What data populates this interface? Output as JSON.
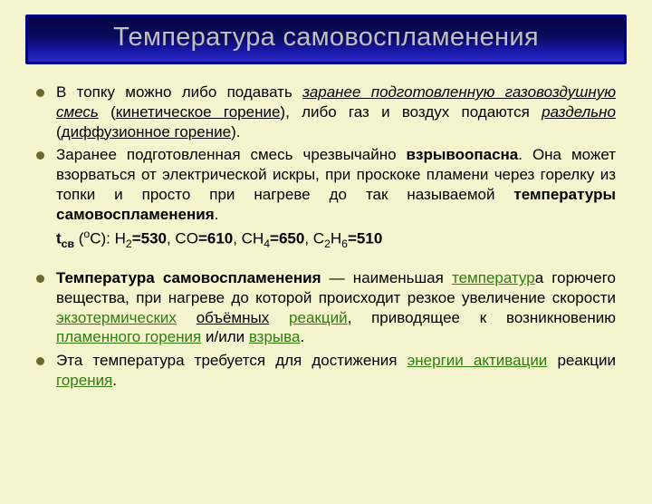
{
  "title": "Температура самовоспламенения",
  "b1": {
    "p1": "В топку можно либо подавать ",
    "p2": "заранее подготовленную газовоздушную смесь",
    "p3": " (",
    "p4": "кинетическое горение",
    "p5": "), либо газ и воздух подаются ",
    "p6": "раздельно",
    "p7": " (",
    "p8": "диффузионное горение",
    "p9": ")."
  },
  "b2": {
    "p1": "Заранее подготовленная смесь чрезвычайно ",
    "p2": "взрывоопасна",
    "p3": ". Она может взорваться от электрической искры, при проскоке пламени через горелку из топки и просто при нагреве до так называемой ",
    "p4": "температуры самовоспламенения",
    "p5": "."
  },
  "formula": {
    "label_t": "t",
    "label_sub": "св",
    "unit_pre": " (",
    "unit_sup": "o",
    "unit_post": "C): ",
    "h2": "H",
    "eq1": "=530",
    "co": ", CO",
    "eq2": "=610",
    "ch4_a": ", CH",
    "eq3": "=650",
    "c2h6_a": ", C",
    "c2h6_b": "H",
    "eq4": "=510",
    "n2": "2",
    "n4": "4",
    "n6": "6"
  },
  "b3": {
    "p1": "Температура самовоспламенения",
    "p2": " — наименьшая ",
    "p3": "температур",
    "p4": "а горючего вещества, при нагреве до которой происходит резкое увеличение скорости ",
    "p5": "экзотермических",
    "p6": " ",
    "p7": "объёмных",
    "p8": " ",
    "p9": "реакций",
    "p10": ", приводящее к возникновению ",
    "p11": "пламенного горения",
    "p12": " и/или ",
    "p13": "взрыва",
    "p14": "."
  },
  "b4": {
    "p1": "Эта температура требуется для достижения ",
    "p2": "энергии активации",
    "p3": " реакции ",
    "p4": "горения",
    "p5": "."
  }
}
